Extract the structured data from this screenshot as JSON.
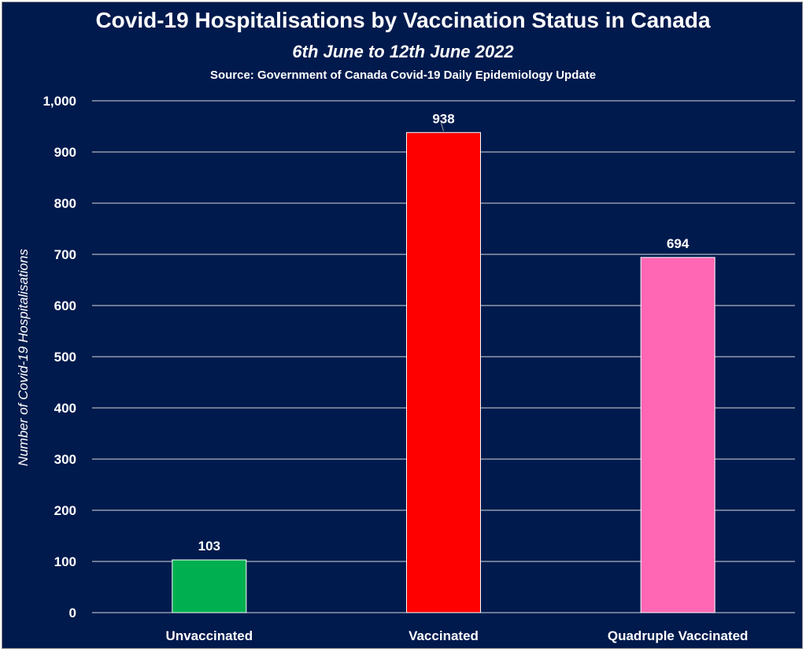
{
  "chart_data": {
    "type": "bar",
    "title": "Covid-19 Hospitalisations by Vaccination Status in Canada",
    "subtitle": "6th June to 12th June 2022",
    "source": "Source: Government of Canada  Covid-19 Daily Epidemiology Update",
    "xlabel": "",
    "ylabel": "Number of Covid-19 Hospitalisations",
    "ylim": [
      0,
      1000
    ],
    "ytick_step": 100,
    "y_tick_labels": [
      "0",
      "100",
      "200",
      "300",
      "400",
      "500",
      "600",
      "700",
      "800",
      "900",
      "1,000"
    ],
    "grid": true,
    "categories": [
      "Unvaccinated",
      "Vaccinated",
      "Quadruple Vaccinated"
    ],
    "values": [
      103,
      938,
      694
    ],
    "data_labels": [
      "103",
      "938",
      "694"
    ],
    "colors": [
      "#00b050",
      "#ff0000",
      "#ff66b3"
    ]
  }
}
